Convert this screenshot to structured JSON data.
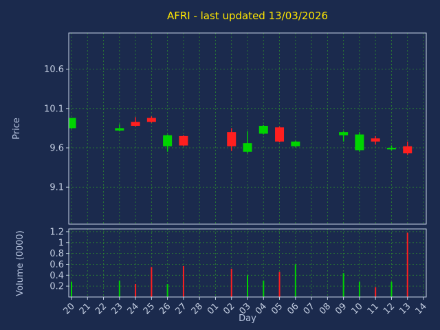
{
  "colors": {
    "background": "#1b2a4d",
    "grid": "#2e8b2e",
    "spine": "#c8d4e6",
    "text": "#c3cde0",
    "label": "#b9c6e0",
    "title": "#ffe600",
    "up": "#00d400",
    "down": "#ff1f1f"
  },
  "chart_data": [
    {
      "type": "candlestick",
      "title": "AFRI - last updated 13/03/2026",
      "xlabel": "Day",
      "ylabel": "Price",
      "categories": [
        "20",
        "21",
        "22",
        "23",
        "24",
        "25",
        "26",
        "27",
        "28",
        "01",
        "02",
        "03",
        "04",
        "05",
        "06",
        "07",
        "08",
        "09",
        "10",
        "11",
        "12",
        "13",
        "14"
      ],
      "yticks": [
        9.1,
        9.6,
        10.1,
        10.6
      ],
      "ylim": [
        8.63,
        11.06
      ],
      "grid": true,
      "legend": "none",
      "candles": [
        {
          "day": "20",
          "open": 9.85,
          "high": 9.98,
          "low": 9.84,
          "close": 9.98
        },
        {
          "day": "23",
          "open": 9.82,
          "high": 9.9,
          "low": 9.81,
          "close": 9.85
        },
        {
          "day": "24",
          "open": 9.93,
          "high": 9.99,
          "low": 9.87,
          "close": 9.88
        },
        {
          "day": "25",
          "open": 9.98,
          "high": 10.0,
          "low": 9.92,
          "close": 9.93
        },
        {
          "day": "26",
          "open": 9.62,
          "high": 9.77,
          "low": 9.55,
          "close": 9.76
        },
        {
          "day": "27",
          "open": 9.75,
          "high": 9.76,
          "low": 9.62,
          "close": 9.63
        },
        {
          "day": "02",
          "open": 9.8,
          "high": 9.85,
          "low": 9.56,
          "close": 9.62
        },
        {
          "day": "03",
          "open": 9.55,
          "high": 9.81,
          "low": 9.53,
          "close": 9.66
        },
        {
          "day": "04",
          "open": 9.78,
          "high": 9.89,
          "low": 9.77,
          "close": 9.88
        },
        {
          "day": "05",
          "open": 9.86,
          "high": 9.87,
          "low": 9.67,
          "close": 9.68
        },
        {
          "day": "06",
          "open": 9.62,
          "high": 9.69,
          "low": 9.61,
          "close": 9.68
        },
        {
          "day": "09",
          "open": 9.76,
          "high": 9.81,
          "low": 9.68,
          "close": 9.8
        },
        {
          "day": "10",
          "open": 9.57,
          "high": 9.8,
          "low": 9.55,
          "close": 9.77
        },
        {
          "day": "11",
          "open": 9.72,
          "high": 9.75,
          "low": 9.64,
          "close": 9.68
        },
        {
          "day": "12",
          "open": 9.58,
          "high": 9.63,
          "low": 9.57,
          "close": 9.6
        },
        {
          "day": "13",
          "open": 9.62,
          "high": 9.68,
          "low": 9.51,
          "close": 9.53
        }
      ]
    },
    {
      "type": "bar",
      "ylabel": "Volume (0000)",
      "yticks": [
        0.2,
        0.4,
        0.6,
        0.8,
        1,
        1.2
      ],
      "ylim": [
        0,
        1.25
      ],
      "grid": true,
      "bars": [
        {
          "day": "20",
          "value": 0.28,
          "dir": "up"
        },
        {
          "day": "23",
          "value": 0.3,
          "dir": "up"
        },
        {
          "day": "24",
          "value": 0.24,
          "dir": "down"
        },
        {
          "day": "25",
          "value": 0.55,
          "dir": "down"
        },
        {
          "day": "26",
          "value": 0.24,
          "dir": "up"
        },
        {
          "day": "27",
          "value": 0.57,
          "dir": "down"
        },
        {
          "day": "02",
          "value": 0.52,
          "dir": "down"
        },
        {
          "day": "03",
          "value": 0.4,
          "dir": "up"
        },
        {
          "day": "04",
          "value": 0.3,
          "dir": "up"
        },
        {
          "day": "05",
          "value": 0.46,
          "dir": "down"
        },
        {
          "day": "06",
          "value": 0.6,
          "dir": "up"
        },
        {
          "day": "09",
          "value": 0.44,
          "dir": "up"
        },
        {
          "day": "10",
          "value": 0.28,
          "dir": "up"
        },
        {
          "day": "11",
          "value": 0.18,
          "dir": "down"
        },
        {
          "day": "12",
          "value": 0.28,
          "dir": "up"
        },
        {
          "day": "13",
          "value": 1.18,
          "dir": "down"
        }
      ]
    }
  ]
}
